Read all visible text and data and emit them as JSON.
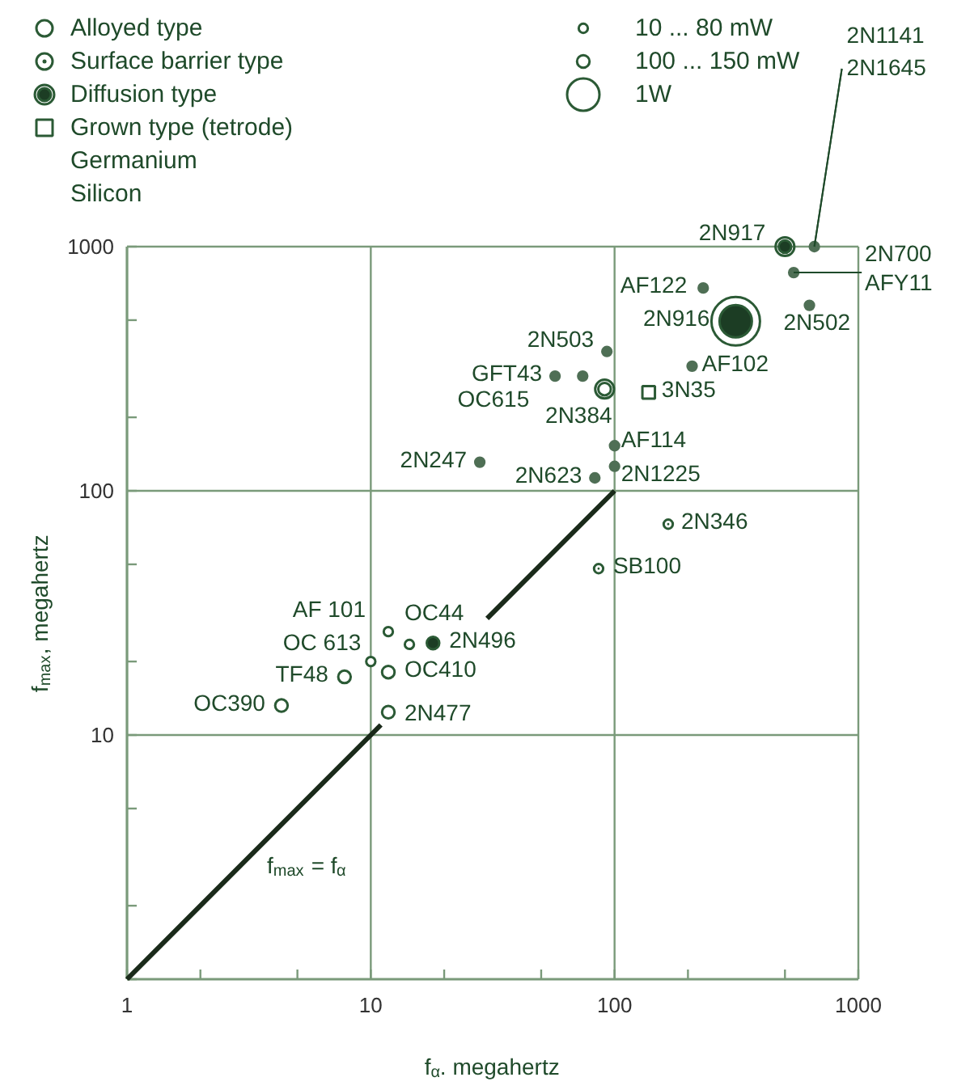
{
  "chart_data": {
    "type": "scatter",
    "xlabel": "f$_{α}$. megahertz",
    "ylabel": "f$_{max}$, megahertz",
    "log": "xy",
    "grid": true,
    "legend": "top left",
    "xlim": [
      1,
      1000
    ],
    "ylim": [
      1,
      1000
    ],
    "xticks": [
      1,
      {
        "value": 2,
        "label": null
      },
      {
        "value": 5,
        "label": null
      },
      10,
      {
        "value": 20,
        "label": null
      },
      {
        "value": 50,
        "label": null
      },
      100,
      {
        "value": 200,
        "label": null
      },
      {
        "value": 500,
        "label": null
      },
      1000
    ],
    "yticks": [
      {
        "value": 1,
        "label": null
      },
      {
        "value": 2,
        "label": null
      },
      {
        "value": 5,
        "label": null
      },
      10,
      {
        "value": 20,
        "label": null
      },
      {
        "value": 50,
        "label": null
      },
      100,
      {
        "value": 200,
        "label": null
      },
      {
        "value": 500,
        "label": null
      },
      1000
    ],
    "size_legend": [
      {
        "value": 80,
        "label": "10 ... 80 mW"
      },
      {
        "value": 150,
        "label": "100 ... 150 mW"
      },
      {
        "value": 1000,
        "label": "1W"
      }
    ],
    "series": [
      {
        "name": "Alloyed type",
        "type": "scatter",
        "marker": "circle",
        "color": "#2b5a35",
        "x": [
          11.8,
          14.4,
          10,
          7.8,
          11.8,
          4.3,
          11.8,
          18
        ],
        "values": [
          26.5,
          23.5,
          20,
          17.3,
          18.1,
          13.2,
          12.4,
          23.8
        ],
        "sizes": [
          80,
          80,
          80,
          150,
          150,
          150,
          150,
          150
        ],
        "colors": [
          "#ffffff",
          "#ffffff",
          "#ffffff",
          "#ffffff",
          "#ffffff",
          "#ffffff",
          "#ffffff",
          "#1c3d24"
        ]
      },
      {
        "name": "Surface barrier type",
        "type": "scatter",
        "marker": "circle_dot",
        "color": "#2b5a35",
        "x": [
          166,
          86
        ],
        "values": [
          73,
          48
        ],
        "sizes": [
          80,
          80
        ],
        "colors": [
          "#ffffff",
          "#ffffff"
        ]
      },
      {
        "name": "Diffusion type",
        "type": "scatter",
        "marker": "double_circle",
        "color": "#2b5a35",
        "x": [
          500,
          91,
          314
        ],
        "values": [
          1000,
          261,
          495
        ],
        "sizes": [
          150,
          150,
          1000
        ],
        "colors": [
          "#1c3d24",
          "#ffffff",
          "#1c3d24"
        ]
      },
      {
        "name": "Grown type (tetrode)",
        "type": "scatter",
        "marker": "square",
        "color": "#2b5a35",
        "x": [
          138
        ],
        "values": [
          253
        ],
        "sizes": [
          150
        ],
        "colors": [
          "#ffffff"
        ]
      },
      {
        "type": "scatter",
        "marker": "circle",
        "color": "#4f6f55",
        "x": [
          660,
          543,
          630,
          231,
          208,
          93,
          74,
          57,
          28,
          83,
          100,
          100
        ],
        "values": [
          1000,
          783,
          575,
          677,
          324,
          372,
          295,
          295,
          131,
          113,
          153,
          126
        ],
        "sizes": [
          80,
          80,
          80,
          80,
          80,
          80,
          80,
          80,
          80,
          80,
          80,
          80
        ],
        "colors": [
          "#4f6f55",
          "#4f6f55",
          "#4f6f55",
          "#4f6f55",
          "#4f6f55",
          "#4f6f55",
          "#4f6f55",
          "#4f6f55",
          "#4f6f55",
          "#4f6f55",
          "#4f6f55",
          "#4f6f55"
        ]
      },
      {
        "name": "f$_{max}$ = f$_{α}$",
        "type": "line",
        "color": "#1a2a1a",
        "line_style": "solid",
        "x": [
          1,
          11,
          null,
          30,
          100
        ],
        "values": [
          1,
          11,
          null,
          30,
          100
        ]
      }
    ],
    "annotations": [
      "Germanium",
      "Silicon",
      {
        "text": "2N1141",
        "x": 660,
        "y": 1000
      },
      {
        "text": "2N1645",
        "x": 660,
        "y": 1000
      },
      {
        "text": "2N917",
        "x": 500,
        "y": 1000
      },
      {
        "text": "2N700",
        "x": 543,
        "y": 783
      },
      {
        "text": "AFY11",
        "x": 543,
        "y": 783
      },
      {
        "text": "2N502",
        "x": 630,
        "y": 575
      },
      {
        "text": "AF122",
        "x": 231,
        "y": 677
      },
      {
        "text": "2N916",
        "x": 314,
        "y": 495
      },
      {
        "text": "AF102",
        "x": 208,
        "y": 324
      },
      {
        "text": "2N503",
        "x": 93,
        "y": 372
      },
      {
        "text": "2N384",
        "x": 91,
        "y": 261
      },
      {
        "text": "GFT43",
        "x": 57,
        "y": 295
      },
      {
        "text": "OC615",
        "x": 74,
        "y": 295
      },
      {
        "text": "3N35",
        "x": 138,
        "y": 253
      },
      {
        "text": "AF114",
        "x": 100,
        "y": 153
      },
      {
        "text": "2N1225",
        "x": 100,
        "y": 126
      },
      {
        "text": "2N623",
        "x": 83,
        "y": 113
      },
      {
        "text": "2N247",
        "x": 28,
        "y": 131
      },
      {
        "text": "2N346",
        "x": 166,
        "y": 73
      },
      {
        "text": "SB100",
        "x": 86,
        "y": 48
      },
      {
        "text": "AF 101",
        "x": 11.8,
        "y": 26.5
      },
      {
        "text": "OC44",
        "x": 14.4,
        "y": 23.5
      },
      {
        "text": "OC 613",
        "x": 10,
        "y": 20
      },
      {
        "text": "TF48",
        "x": 7.8,
        "y": 17.3
      },
      {
        "text": "OC410",
        "x": 11.8,
        "y": 18.1
      },
      {
        "text": "OC390",
        "x": 4.3,
        "y": 13.2
      },
      {
        "text": "2N477",
        "x": 11.8,
        "y": 12.4
      },
      {
        "text": "2N496",
        "x": 18,
        "y": 23.8
      }
    ]
  }
}
